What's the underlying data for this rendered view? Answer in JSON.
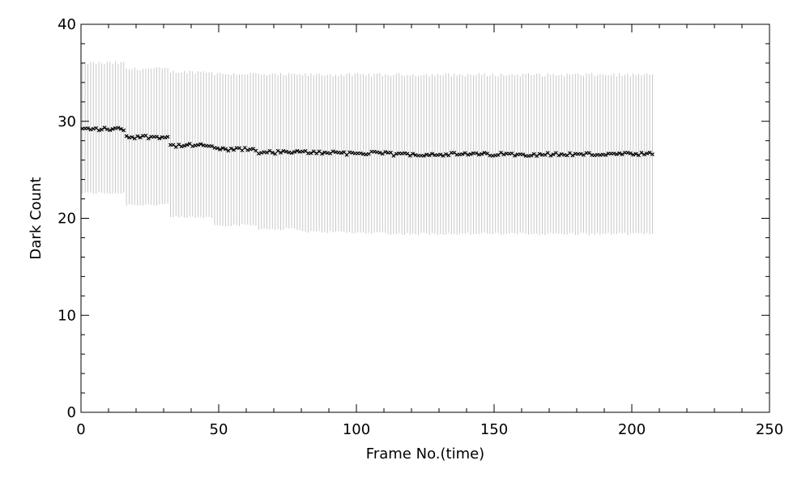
{
  "chart_data": {
    "type": "scatter",
    "title": "",
    "xlabel": "Frame No.(time)",
    "ylabel": "Dark Count",
    "xlim": [
      0,
      250
    ],
    "ylim": [
      0,
      40
    ],
    "x_ticks": [
      0,
      50,
      100,
      150,
      200,
      250
    ],
    "y_ticks": [
      0,
      10,
      20,
      30,
      40
    ],
    "x_minor_step": 10,
    "y_minor_step": 2,
    "grid": false,
    "colors": {
      "points": "#000000",
      "error_bars": "#c8c8c8",
      "axes": "#000000"
    },
    "series": [
      {
        "frames": [
          0,
          207
        ],
        "segments": [
          {
            "x_start": 0,
            "x_end": 15,
            "mean": 29.2,
            "upper": 36.0,
            "lower": 22.6
          },
          {
            "x_start": 16,
            "x_end": 31,
            "mean": 28.4,
            "upper": 35.4,
            "lower": 21.4
          },
          {
            "x_start": 32,
            "x_end": 47,
            "mean": 27.5,
            "upper": 35.1,
            "lower": 20.1
          },
          {
            "x_start": 48,
            "x_end": 63,
            "mean": 27.1,
            "upper": 34.9,
            "lower": 19.3
          },
          {
            "x_start": 64,
            "x_end": 79,
            "mean": 26.8,
            "upper": 34.8,
            "lower": 18.9
          },
          {
            "x_start": 80,
            "x_end": 95,
            "mean": 26.8,
            "upper": 34.8,
            "lower": 18.6
          },
          {
            "x_start": 96,
            "x_end": 111,
            "mean": 26.7,
            "upper": 34.8,
            "lower": 18.5
          },
          {
            "x_start": 112,
            "x_end": 127,
            "mean": 26.6,
            "upper": 34.8,
            "lower": 18.4
          },
          {
            "x_start": 128,
            "x_end": 143,
            "mean": 26.6,
            "upper": 34.8,
            "lower": 18.4
          },
          {
            "x_start": 144,
            "x_end": 159,
            "mean": 26.6,
            "upper": 34.8,
            "lower": 18.4
          },
          {
            "x_start": 160,
            "x_end": 175,
            "mean": 26.6,
            "upper": 34.8,
            "lower": 18.4
          },
          {
            "x_start": 176,
            "x_end": 191,
            "mean": 26.6,
            "upper": 34.8,
            "lower": 18.4
          },
          {
            "x_start": 192,
            "x_end": 207,
            "mean": 26.6,
            "upper": 34.8,
            "lower": 18.4
          }
        ]
      }
    ]
  }
}
